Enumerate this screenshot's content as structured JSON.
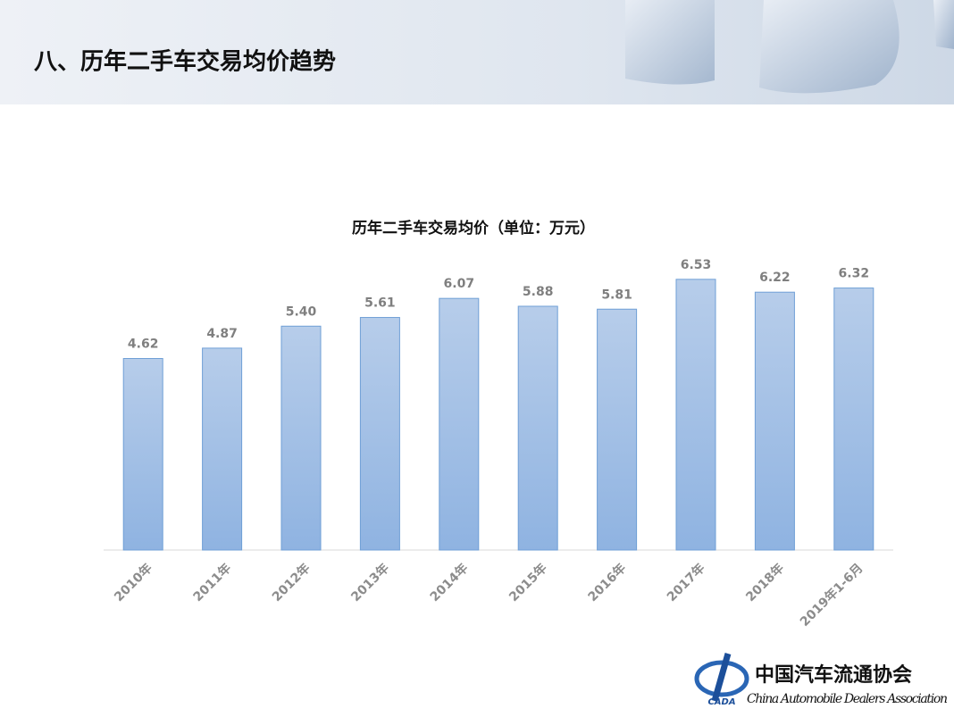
{
  "header": {
    "title": "八、历年二手车交易均价趋势"
  },
  "chart_data": {
    "type": "bar",
    "title": "历年二手车交易均价（单位：万元）",
    "categories": [
      "2010年",
      "2011年",
      "2012年",
      "2013年",
      "2014年",
      "2015年",
      "2016年",
      "2017年",
      "2018年",
      "2019年1-6月"
    ],
    "values": [
      4.62,
      4.87,
      5.4,
      5.61,
      6.07,
      5.88,
      5.81,
      6.53,
      6.22,
      6.32
    ],
    "value_labels": [
      "4.62",
      "4.87",
      "5.40",
      "5.61",
      "6.07",
      "5.88",
      "5.81",
      "6.53",
      "6.22",
      "6.32"
    ],
    "color": "#9dbde6",
    "ylim": [
      0,
      7
    ]
  },
  "logo": {
    "name": "中国汽车流通协会",
    "english": "China Automobile Dealers Association",
    "abbr": "CADA"
  }
}
